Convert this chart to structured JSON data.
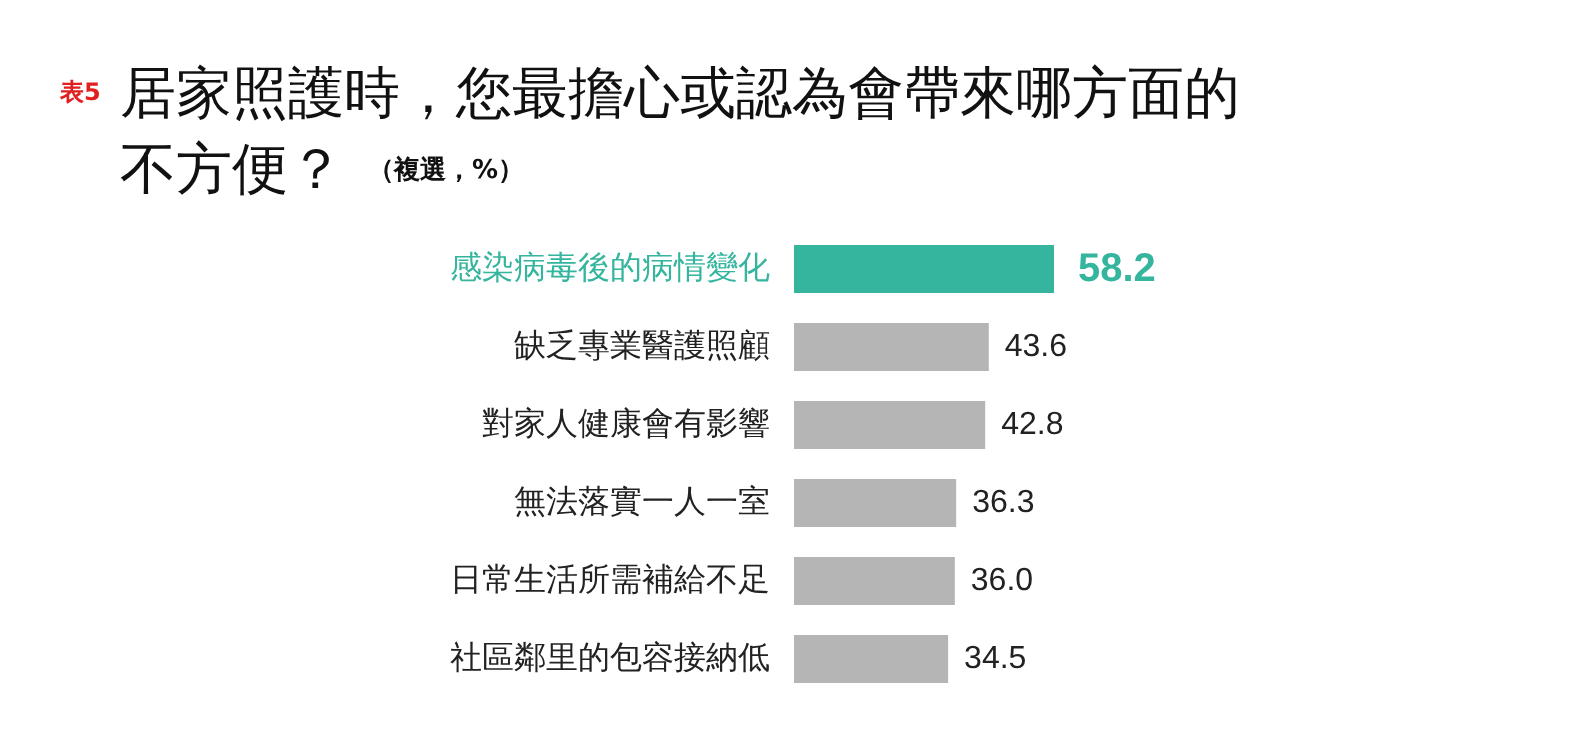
{
  "chart_data": {
    "type": "bar",
    "orientation": "horizontal",
    "title": "居家照護時，您最擔心或認為會帶來哪方面的不方便？",
    "subtitle": "（複選，%）",
    "annotations": [
      "表5"
    ],
    "categories": [
      "感染病毒後的病情變化",
      "缺乏專業醫護照顧",
      "對家人健康會有影響",
      "無法落實一人一室",
      "日常生活所需補給不足",
      "社區鄰里的包容接納低"
    ],
    "values": [
      58.2,
      43.6,
      42.8,
      36.3,
      36.0,
      34.5
    ],
    "value_labels": [
      "58.2",
      "43.6",
      "42.8",
      "36.3",
      "36.0",
      "34.5"
    ],
    "colors": [
      "#35b59e",
      "#b5b5b5",
      "#b5b5b5",
      "#b5b5b5",
      "#b5b5b5",
      "#b5b5b5"
    ]
  }
}
